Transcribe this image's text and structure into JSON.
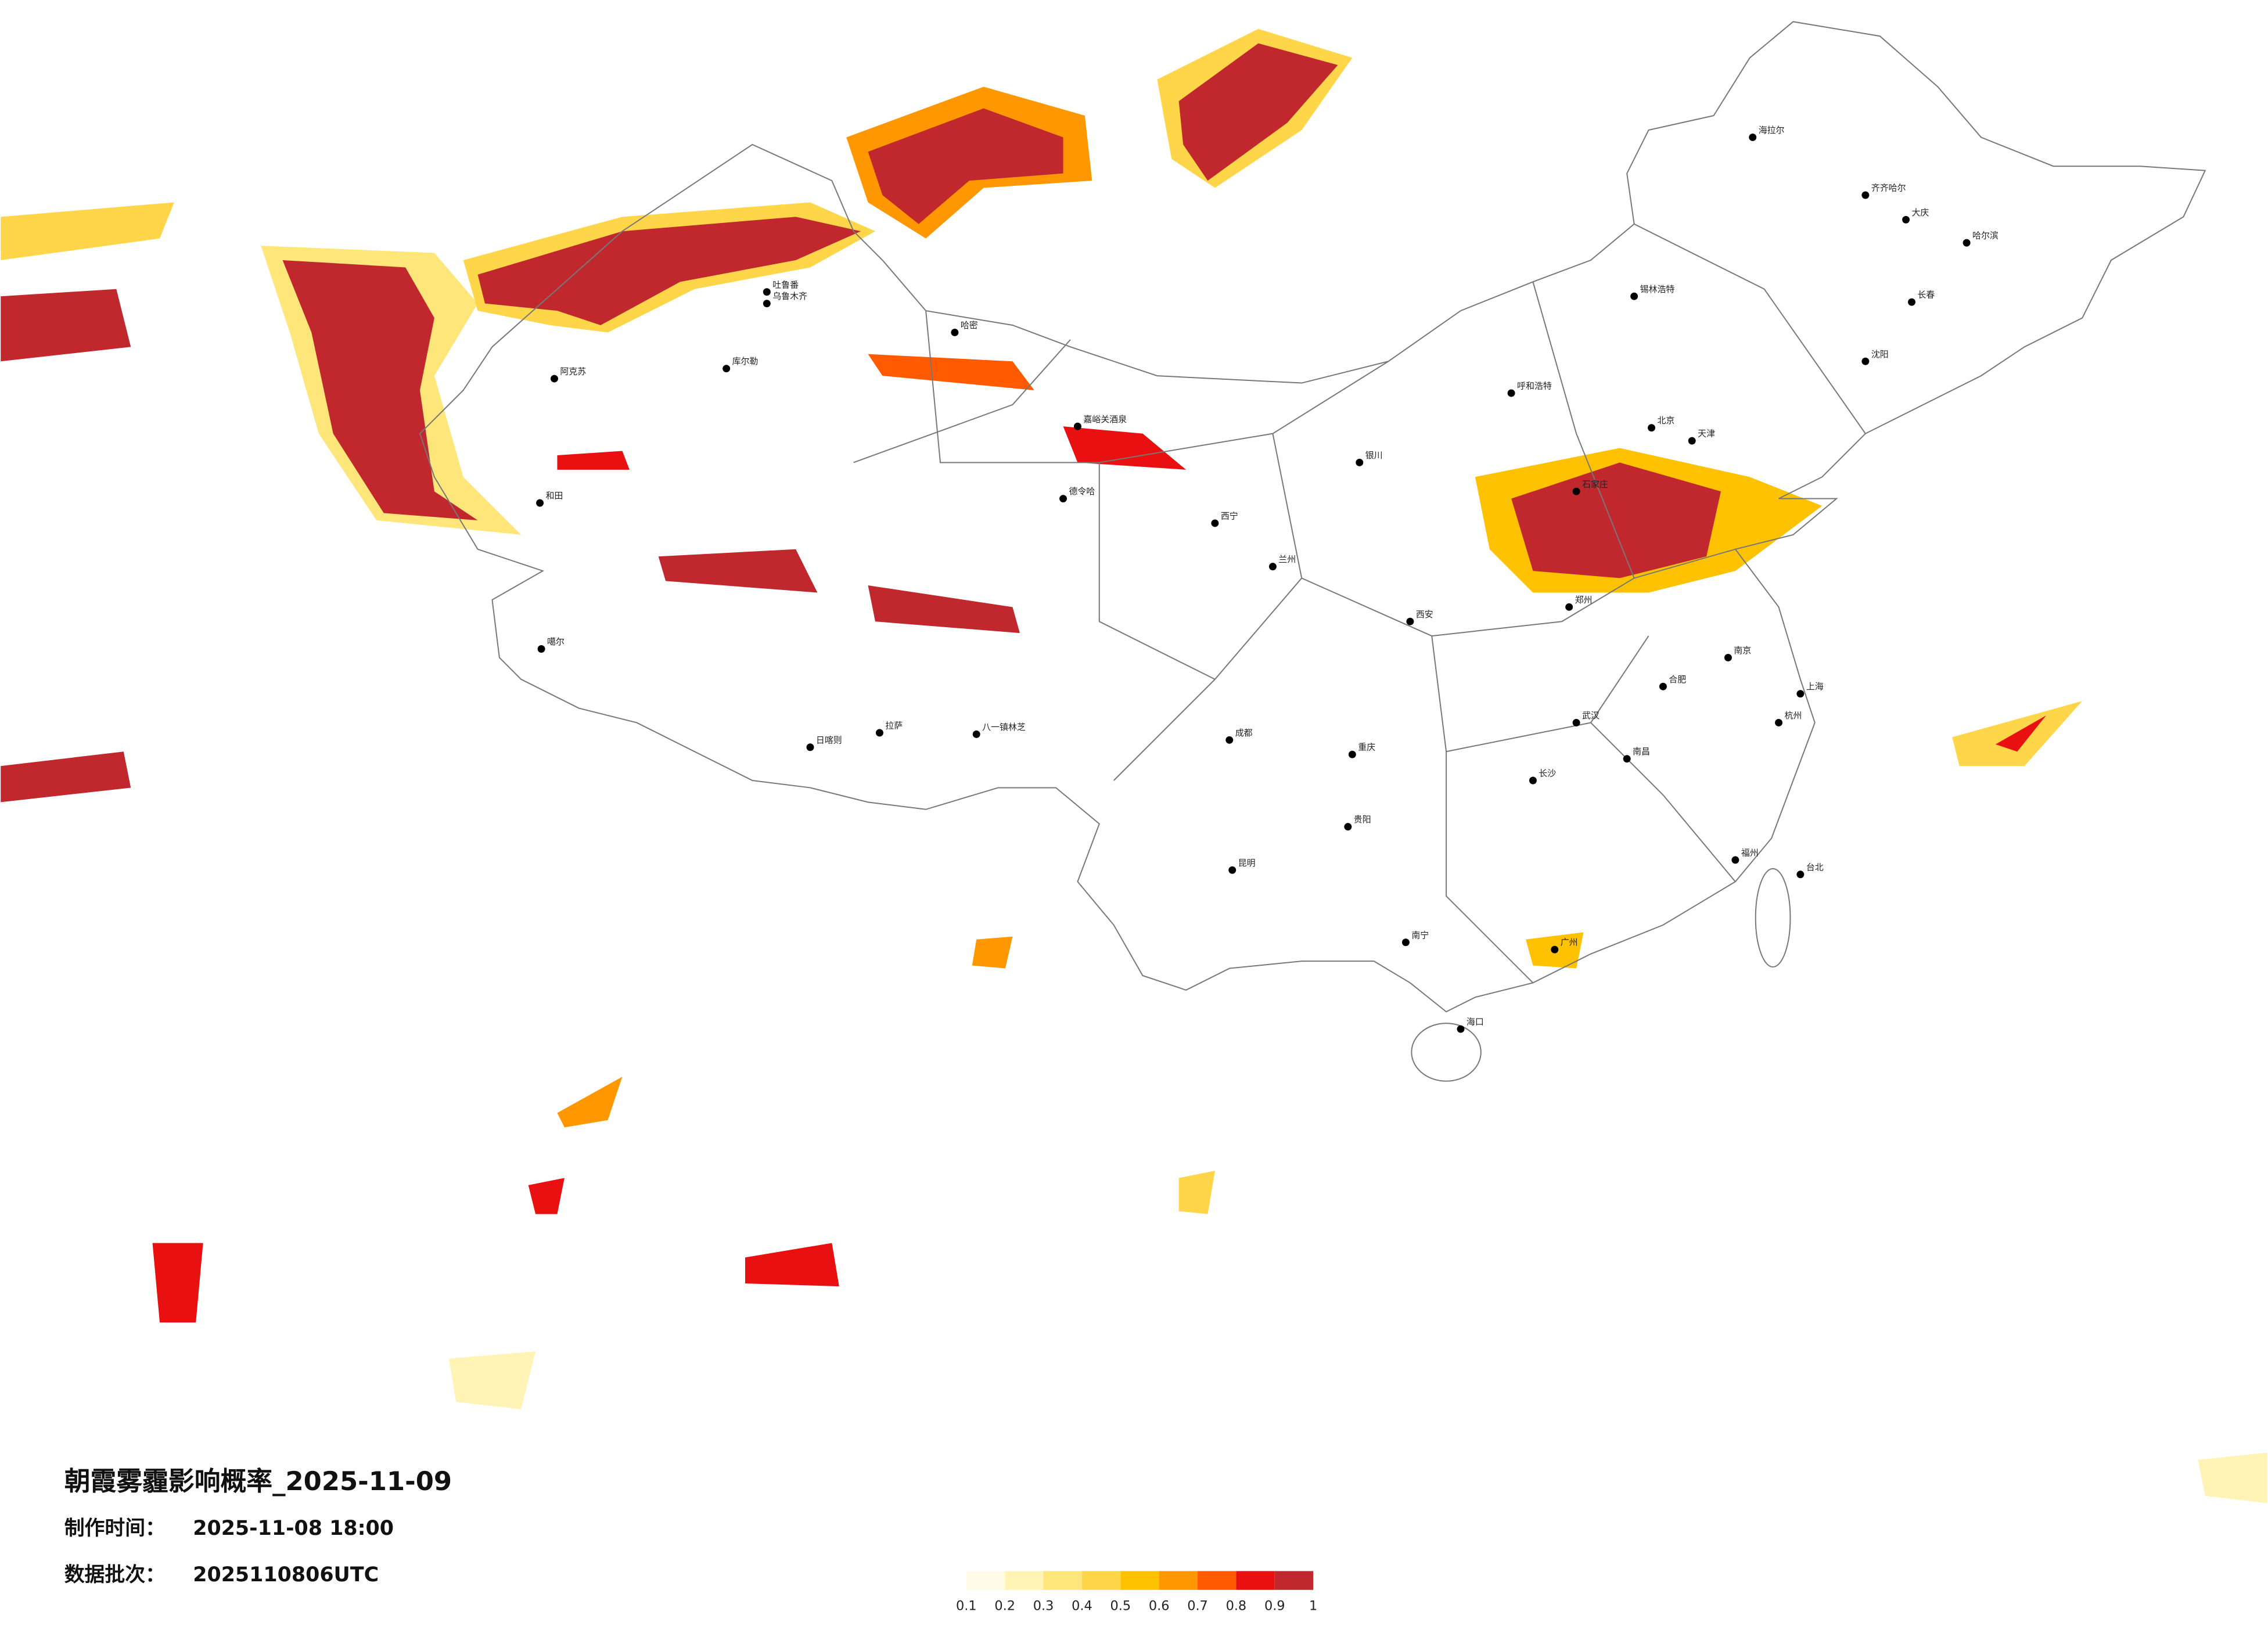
{
  "header": {
    "title": "朝霞雾霾影响概率_2025-11-09",
    "made_label": "制作时间：",
    "made_value": "2025-11-08 18:00",
    "batch_label": "数据批次：",
    "batch_value": "2025110806UTC"
  },
  "legend": {
    "ticks": [
      0.1,
      0.2,
      0.3,
      0.4,
      0.5,
      0.6,
      0.7,
      0.8,
      0.9,
      1
    ],
    "colors": [
      "#fffbe6",
      "#fff4b5",
      "#ffe67a",
      "#ffd64a",
      "#ffc200",
      "#ff9800",
      "#ff5a00",
      "#e81010",
      "#c0282e"
    ]
  },
  "cities": [
    "乌鲁木齐",
    "阿克苏",
    "库尔勒",
    "和田",
    "哈密",
    "吐鲁番",
    "噶尔",
    "日喀则",
    "拉萨",
    "八一镇林芝",
    "德令哈",
    "嘉峪关酒泉",
    "西宁",
    "兰州",
    "银川",
    "呼和浩特",
    "锡林浩特",
    "海拉尔",
    "齐齐哈尔",
    "大庆",
    "哈尔滨",
    "长春",
    "沈阳",
    "北京",
    "天津",
    "石家庄",
    "郑州",
    "西安",
    "成都",
    "重庆",
    "贵阳",
    "昆明",
    "南宁",
    "海口",
    "长沙",
    "武汉",
    "南昌",
    "合肥",
    "南京",
    "上海",
    "杭州",
    "福州",
    "广州",
    "台北"
  ]
}
